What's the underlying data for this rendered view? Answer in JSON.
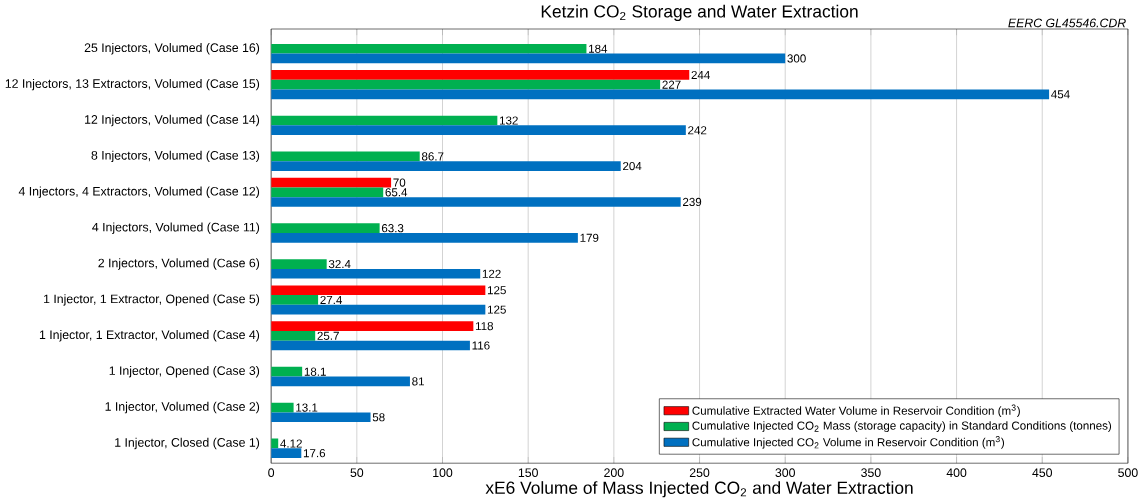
{
  "chart_data": {
    "type": "bar",
    "orientation": "horizontal",
    "title": "Ketzin CO$_{2}$ Storage and Water Extraction",
    "xlabel": "xE6 Volume of Mass Injected CO$_{2}$ and Water Extraction",
    "annotations": [
      "EERC GL45546.CDR"
    ],
    "categories": [
      "25 Injectors, Volumed (Case 16)",
      "12 Injectors, 13 Extractors, Volumed (Case 15)",
      "12 Injectors, Volumed (Case 14)",
      "8 Injectors, Volumed (Case 13)",
      "4 Injectors, 4 Extractors, Volumed (Case 12)",
      "4 Injectors, Volumed (Case 11)",
      "2 Injectors, Volumed (Case 6)",
      "1 Injector, 1 Extractor, Opened (Case 5)",
      "1 Injector, 1 Extractor, Volumed  (Case 4)",
      "1 Injector, Opened  (Case 3)",
      "1 Injector, Volumed (Case 2)",
      "1 Injector, Closed (Case 1)"
    ],
    "series": [
      {
        "name": "Cumulative Extracted Water Volume in Reservoir Condition (m$^{3}$)",
        "color": "#ff0000",
        "values": [
          null,
          244,
          null,
          null,
          70,
          null,
          null,
          125,
          118,
          null,
          null,
          null
        ],
        "value_labels": [
          null,
          "244",
          null,
          null,
          "70",
          null,
          null,
          "125",
          "118",
          null,
          null,
          null
        ]
      },
      {
        "name": "Cumulative Injected CO$_{2}$ Mass (storage capacity) in Standard Conditions (tonnes)",
        "color": "#00b050",
        "values": [
          184,
          227,
          132,
          86.7,
          65.4,
          63.3,
          32.4,
          27.4,
          25.7,
          18.1,
          13.1,
          4.12
        ],
        "value_labels": [
          "184",
          "227",
          "132",
          "86.7",
          "65.4",
          "63.3",
          "32.4",
          "27.4",
          "25.7",
          "18.1",
          "13.1",
          "4.12"
        ]
      },
      {
        "name": "Cumulative Injected CO$_{2}$ Volume in Reservoir Condition (m$^{3}$)",
        "color": "#0070c0",
        "values": [
          300,
          454,
          242,
          204,
          239,
          179,
          122,
          125,
          116,
          81,
          58,
          17.6
        ],
        "value_labels": [
          "300",
          "454",
          "242",
          "204",
          "239",
          "179",
          "122",
          "125",
          "116",
          "81",
          "58",
          "17.6"
        ]
      }
    ],
    "xlim": [
      0,
      500
    ],
    "xticks": [
      0,
      50,
      100,
      150,
      200,
      250,
      300,
      350,
      400,
      450,
      500
    ],
    "grid": "x",
    "legend": "bottom right"
  }
}
